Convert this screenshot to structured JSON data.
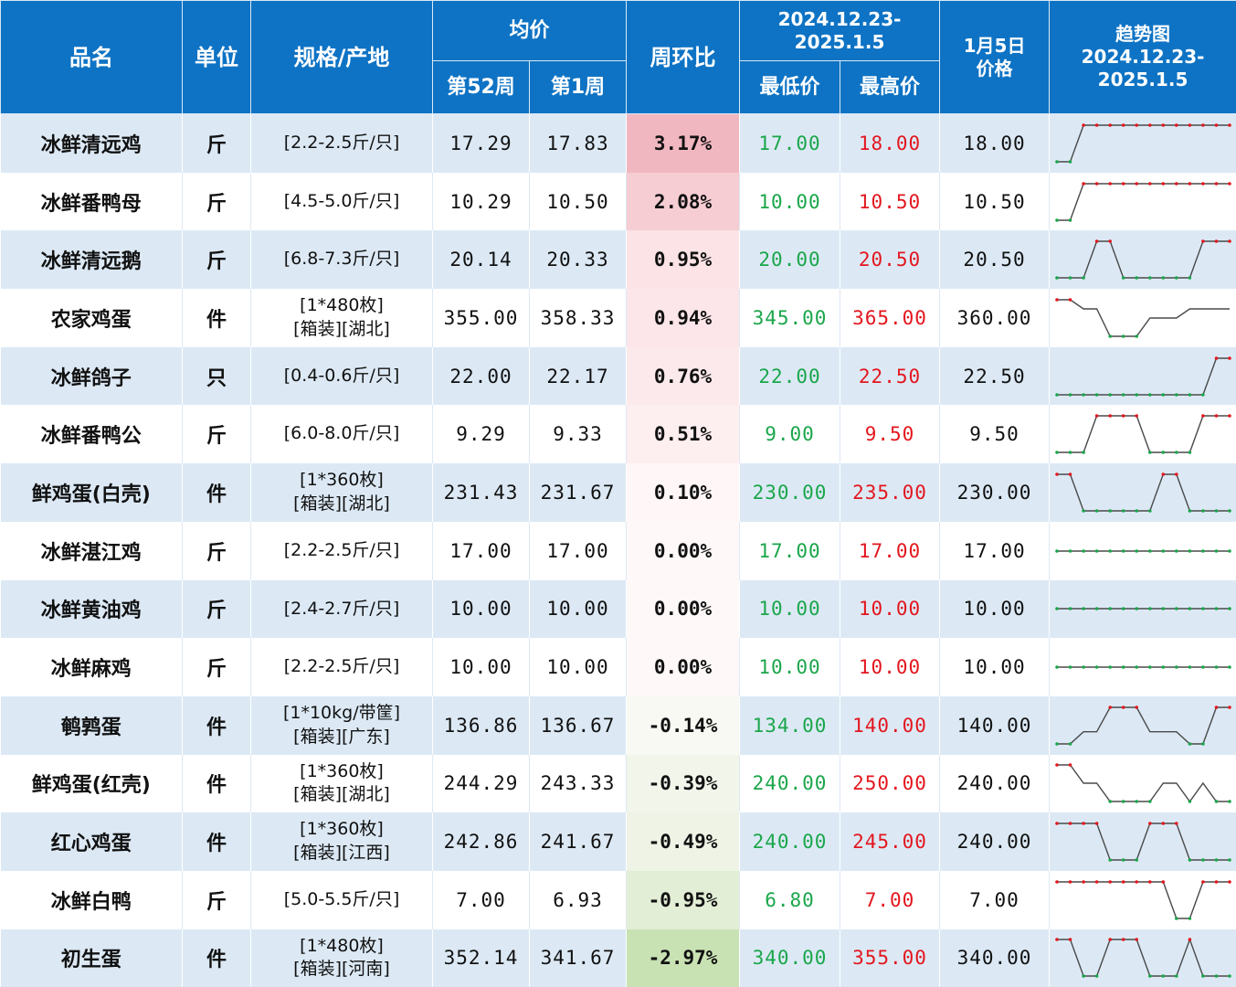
{
  "header": {
    "name": "品名",
    "unit": "单位",
    "spec": "规格/产地",
    "avg": "均价",
    "wk52": "第52周",
    "wk1": "第1周",
    "chg": "周环比",
    "range_l1": "2024.12.23-",
    "range_l2": "2025.1.5",
    "low": "最低价",
    "high": "最高价",
    "jan5_l1": "1月5日",
    "jan5_l2": "价格",
    "trend_l1": "趋势图",
    "trend_l2": "2024.12.23-",
    "trend_l3": "2025.1.5"
  },
  "colors": {
    "header_bg": "#0e73c4",
    "row_alt": "#dce9f5",
    "low_green": "#1aa64a",
    "high_red": "#e3161e"
  },
  "rows": [
    {
      "name": "冰鲜清远鸡",
      "unit": "斤",
      "spec1": "[2.2-2.5斤/只]",
      "spec2": "",
      "w52": "17.29",
      "w1": "17.83",
      "chg": "3.17%",
      "chg_bg": "#f1b7c0",
      "low": "17.00",
      "high": "18.00",
      "jan5": "18.00",
      "trend": [
        17,
        17,
        18,
        18,
        18,
        18,
        18,
        18,
        18,
        18,
        18,
        18,
        18,
        18
      ]
    },
    {
      "name": "冰鲜番鸭母",
      "unit": "斤",
      "spec1": "[4.5-5.0斤/只]",
      "spec2": "",
      "w52": "10.29",
      "w1": "10.50",
      "chg": "2.08%",
      "chg_bg": "#f6cdd3",
      "low": "10.00",
      "high": "10.50",
      "jan5": "10.50",
      "trend": [
        10,
        10,
        10.5,
        10.5,
        10.5,
        10.5,
        10.5,
        10.5,
        10.5,
        10.5,
        10.5,
        10.5,
        10.5,
        10.5
      ]
    },
    {
      "name": "冰鲜清远鹅",
      "unit": "斤",
      "spec1": "[6.8-7.3斤/只]",
      "spec2": "",
      "w52": "20.14",
      "w1": "20.33",
      "chg": "0.95%",
      "chg_bg": "#fbe3e6",
      "low": "20.00",
      "high": "20.50",
      "jan5": "20.50",
      "trend": [
        20,
        20,
        20,
        20.5,
        20.5,
        20,
        20,
        20,
        20,
        20,
        20,
        20.5,
        20.5,
        20.5
      ]
    },
    {
      "name": "农家鸡蛋",
      "unit": "件",
      "spec1": "[1*480枚]",
      "spec2": "[箱装][湖北]",
      "w52": "355.00",
      "w1": "358.33",
      "chg": "0.94%",
      "chg_bg": "#fce6e9",
      "low": "345.00",
      "high": "365.00",
      "jan5": "360.00",
      "trend": [
        365,
        365,
        360,
        360,
        345,
        345,
        345,
        355,
        355,
        355,
        360,
        360,
        360,
        360
      ]
    },
    {
      "name": "冰鲜鸽子",
      "unit": "只",
      "spec1": "[0.4-0.6斤/只]",
      "spec2": "",
      "w52": "22.00",
      "w1": "22.17",
      "chg": "0.76%",
      "chg_bg": "#fce9ec",
      "low": "22.00",
      "high": "22.50",
      "jan5": "22.50",
      "trend": [
        22,
        22,
        22,
        22,
        22,
        22,
        22,
        22,
        22,
        22,
        22,
        22,
        22.5,
        22.5
      ]
    },
    {
      "name": "冰鲜番鸭公",
      "unit": "斤",
      "spec1": "[6.0-8.0斤/只]",
      "spec2": "",
      "w52": "9.29",
      "w1": "9.33",
      "chg": "0.51%",
      "chg_bg": "#fdeef0",
      "low": "9.00",
      "high": "9.50",
      "jan5": "9.50",
      "trend": [
        9,
        9,
        9,
        9.5,
        9.5,
        9.5,
        9.5,
        9,
        9,
        9,
        9,
        9.5,
        9.5,
        9.5
      ]
    },
    {
      "name": "鲜鸡蛋(白壳)",
      "unit": "件",
      "spec1": "[1*360枚]",
      "spec2": "[箱装][湖北]",
      "w52": "231.43",
      "w1": "231.67",
      "chg": "0.10%",
      "chg_bg": "#fef6f7",
      "low": "230.00",
      "high": "235.00",
      "jan5": "230.00",
      "trend": [
        235,
        235,
        230,
        230,
        230,
        230,
        230,
        230,
        235,
        235,
        230,
        230,
        230,
        230
      ]
    },
    {
      "name": "冰鲜湛江鸡",
      "unit": "斤",
      "spec1": "[2.2-2.5斤/只]",
      "spec2": "",
      "w52": "17.00",
      "w1": "17.00",
      "chg": "0.00%",
      "chg_bg": "#fef8f8",
      "low": "17.00",
      "high": "17.00",
      "jan5": "17.00",
      "trend": [
        17,
        17,
        17,
        17,
        17,
        17,
        17,
        17,
        17,
        17,
        17,
        17,
        17,
        17
      ]
    },
    {
      "name": "冰鲜黄油鸡",
      "unit": "斤",
      "spec1": "[2.4-2.7斤/只]",
      "spec2": "",
      "w52": "10.00",
      "w1": "10.00",
      "chg": "0.00%",
      "chg_bg": "#fef8f8",
      "low": "10.00",
      "high": "10.00",
      "jan5": "10.00",
      "trend": [
        10,
        10,
        10,
        10,
        10,
        10,
        10,
        10,
        10,
        10,
        10,
        10,
        10,
        10
      ]
    },
    {
      "name": "冰鲜麻鸡",
      "unit": "斤",
      "spec1": "[2.2-2.5斤/只]",
      "spec2": "",
      "w52": "10.00",
      "w1": "10.00",
      "chg": "0.00%",
      "chg_bg": "#fef8f8",
      "low": "10.00",
      "high": "10.00",
      "jan5": "10.00",
      "trend": [
        10,
        10,
        10,
        10,
        10,
        10,
        10,
        10,
        10,
        10,
        10,
        10,
        10,
        10
      ]
    },
    {
      "name": "鹌鹑蛋",
      "unit": "件",
      "spec1": "[1*10kg/带筐]",
      "spec2": "[箱装][广东]",
      "w52": "136.86",
      "w1": "136.67",
      "chg": "-0.14%",
      "chg_bg": "#f7f9f2",
      "low": "134.00",
      "high": "140.00",
      "jan5": "140.00",
      "trend": [
        134,
        134,
        136,
        136,
        140,
        140,
        140,
        136,
        136,
        136,
        134,
        134,
        140,
        140
      ]
    },
    {
      "name": "鲜鸡蛋(红壳)",
      "unit": "件",
      "spec1": "[1*360枚]",
      "spec2": "[箱装][湖北]",
      "w52": "244.29",
      "w1": "243.33",
      "chg": "-0.39%",
      "chg_bg": "#f1f5ea",
      "low": "240.00",
      "high": "250.00",
      "jan5": "240.00",
      "trend": [
        250,
        250,
        245,
        245,
        240,
        240,
        240,
        240,
        245,
        245,
        240,
        245,
        240,
        240
      ]
    },
    {
      "name": "红心鸡蛋",
      "unit": "件",
      "spec1": "[1*360枚]",
      "spec2": "[箱装][江西]",
      "w52": "242.86",
      "w1": "241.67",
      "chg": "-0.49%",
      "chg_bg": "#eef3e6",
      "low": "240.00",
      "high": "245.00",
      "jan5": "240.00",
      "trend": [
        245,
        245,
        245,
        245,
        240,
        240,
        240,
        245,
        245,
        245,
        240,
        240,
        240,
        240
      ]
    },
    {
      "name": "冰鲜白鸭",
      "unit": "斤",
      "spec1": "[5.0-5.5斤/只]",
      "spec2": "",
      "w52": "7.00",
      "w1": "6.93",
      "chg": "-0.95%",
      "chg_bg": "#e3eed6",
      "low": "6.80",
      "high": "7.00",
      "jan5": "7.00",
      "trend": [
        7,
        7,
        7,
        7,
        7,
        7,
        7,
        7,
        7,
        6.8,
        6.8,
        7,
        7,
        7
      ]
    },
    {
      "name": "初生蛋",
      "unit": "件",
      "spec1": "[1*480枚]",
      "spec2": "[箱装][河南]",
      "w52": "352.14",
      "w1": "341.67",
      "chg": "-2.97%",
      "chg_bg": "#c9e2b4",
      "low": "340.00",
      "high": "355.00",
      "jan5": "340.00",
      "trend": [
        355,
        355,
        340,
        340,
        355,
        355,
        355,
        340,
        340,
        340,
        355,
        340,
        340,
        340
      ]
    }
  ]
}
